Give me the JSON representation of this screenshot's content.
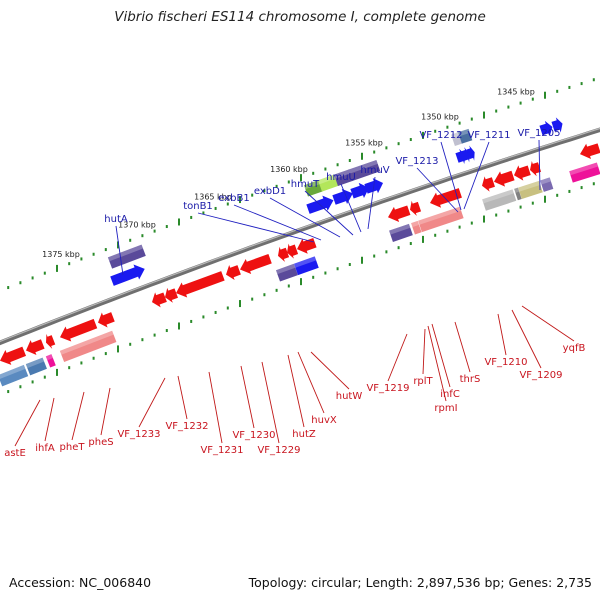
{
  "title": "Vibrio fischeri ES114 chromosome I, complete genome",
  "footer": {
    "accession": "Accession: NC_006840",
    "summary": "Topology: circular; Length: 2,897,536 bp; Genes: 2,735"
  },
  "colors": {
    "forward_label": "#1a1aa8",
    "reverse_label": "#c8141e",
    "forward_gene": "#1a1af0",
    "reverse_gene": "#ee1111",
    "backbone": "#808080",
    "tick": "#2a8a2a"
  },
  "kbp_labels": [
    "1345 kbp",
    "1350 kbp",
    "1355 kbp",
    "1360 kbp",
    "1365 kbp",
    "1370 kbp",
    "1375 kbp"
  ],
  "forward_genes": [
    "hutA",
    "tonB1",
    "exbB1",
    "exbD1",
    "hmuT",
    "hmuU",
    "hmuV",
    "VF_1213",
    "VF_1212",
    "VF_1211",
    "VF_1205"
  ],
  "reverse_genes": [
    "astE",
    "ihfA",
    "pheT",
    "pheS",
    "VF_1233",
    "VF_1232",
    "VF_1231",
    "VF_1230",
    "VF_1229",
    "hutZ",
    "huvX",
    "hutW",
    "VF_1219",
    "rplT",
    "rpmI",
    "infC",
    "thrS",
    "VF_1210",
    "VF_1209",
    "yqfB"
  ]
}
